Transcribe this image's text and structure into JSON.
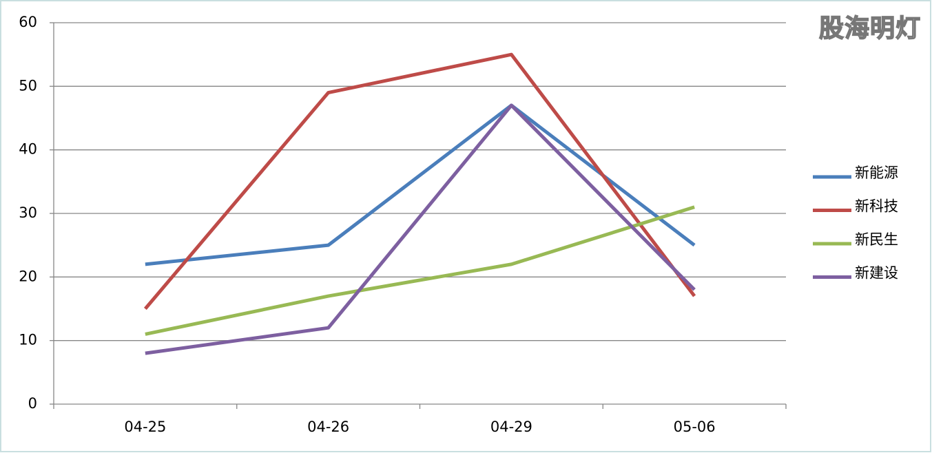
{
  "watermark": "股海明灯",
  "chart_data": {
    "type": "line",
    "categories": [
      "04-25",
      "04-26",
      "04-29",
      "05-06"
    ],
    "series": [
      {
        "name": "新能源",
        "color": "#4a7ebb",
        "values": [
          22,
          25,
          47,
          25
        ]
      },
      {
        "name": "新科技",
        "color": "#be4b48",
        "values": [
          15,
          49,
          55,
          17
        ]
      },
      {
        "name": "新民生",
        "color": "#98b954",
        "values": [
          11,
          17,
          22,
          31
        ]
      },
      {
        "name": "新建设",
        "color": "#7d5fa0",
        "values": [
          8,
          12,
          47,
          18
        ]
      }
    ],
    "ylim": [
      0,
      60
    ],
    "yticks": [
      0,
      10,
      20,
      30,
      40,
      50,
      60
    ],
    "grid": true,
    "legend": "right"
  }
}
